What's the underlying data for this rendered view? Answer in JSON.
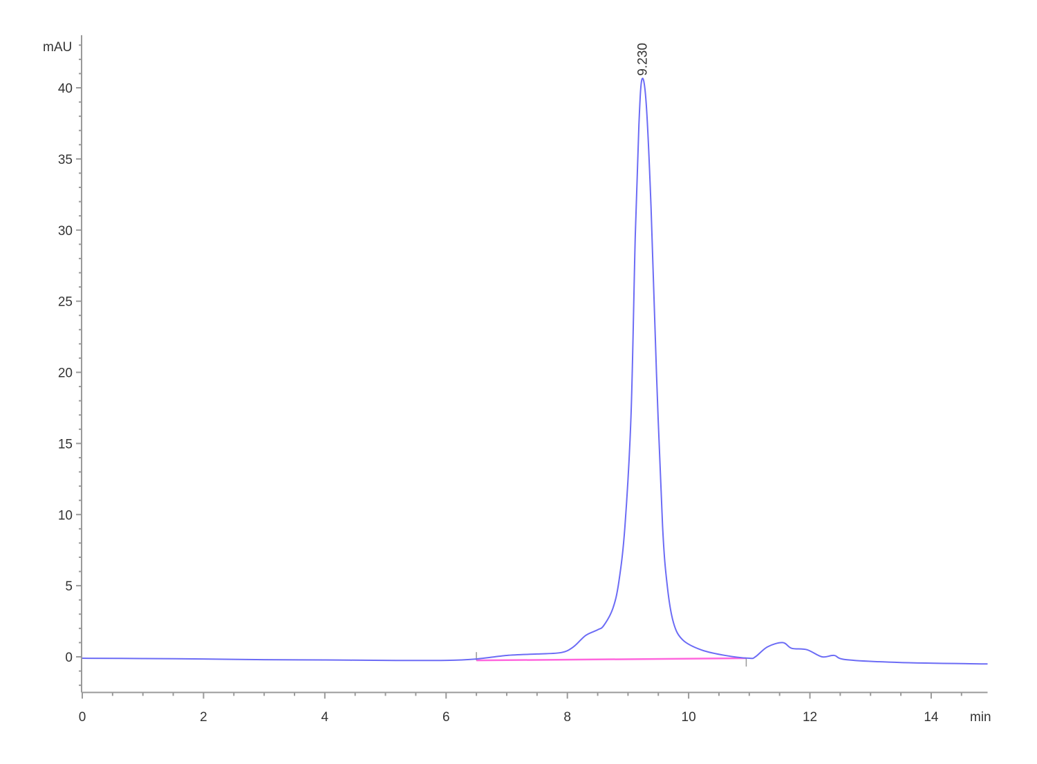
{
  "chart_data": {
    "type": "line",
    "title": "",
    "xlabel": "min",
    "ylabel": "mAU",
    "xlim": [
      0,
      14.93
    ],
    "ylim": [
      -2.5,
      43.7
    ],
    "x_ticks": [
      0,
      2,
      4,
      6,
      8,
      10,
      12,
      14
    ],
    "x_tick_labels": [
      "0",
      "2",
      "4",
      "6",
      "8",
      "10",
      "12",
      "14"
    ],
    "x_minor_step": 0.5,
    "y_ticks": [
      0,
      5,
      10,
      15,
      20,
      25,
      30,
      35,
      40
    ],
    "y_tick_labels": [
      "0",
      "5",
      "10",
      "15",
      "20",
      "25",
      "30",
      "35",
      "40"
    ],
    "y_minor_step": 1,
    "grid": false,
    "colors": {
      "signal": "#6b6bf5",
      "baseline": "#ff66dd",
      "axis": "#999999"
    },
    "series": [
      {
        "x": [
          0,
          1,
          2,
          3,
          4,
          5,
          6,
          6.5,
          7,
          7.5,
          7.9,
          8.1,
          8.3,
          8.5,
          8.6,
          8.75,
          8.85,
          8.95,
          9.05,
          9.12,
          9.18,
          9.23,
          9.3,
          9.38,
          9.47,
          9.57,
          9.65,
          9.75,
          9.9,
          10.2,
          10.6,
          11.0,
          11.1,
          11.3,
          11.55,
          11.7,
          11.95,
          12.2,
          12.4,
          12.6,
          13.5,
          14.93
        ],
        "y": [
          -0.1,
          -0.12,
          -0.15,
          -0.2,
          -0.22,
          -0.25,
          -0.25,
          -0.15,
          0.1,
          0.2,
          0.3,
          0.7,
          1.5,
          1.9,
          2.2,
          3.4,
          5.3,
          9.2,
          17,
          29.6,
          37.4,
          40.6,
          38.9,
          31.6,
          19.9,
          9.2,
          4.9,
          2.4,
          1.2,
          0.5,
          0.1,
          -0.1,
          0,
          0.7,
          1.0,
          0.6,
          0.5,
          0,
          0.1,
          -0.2,
          -0.4,
          -0.5
        ]
      }
    ],
    "integration_baseline": {
      "x": [
        6.5,
        10.95
      ],
      "y": [
        -0.25,
        -0.1
      ]
    },
    "annotations": [
      {
        "text": "9.230",
        "x": 9.23,
        "y": 40.6
      }
    ]
  }
}
